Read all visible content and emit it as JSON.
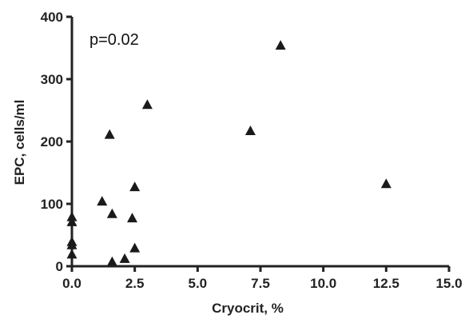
{
  "chart_data": {
    "type": "scatter",
    "title": "",
    "xlabel": "Cryocrit, %",
    "ylabel": "EPC, cells/ml",
    "xlim": [
      0,
      15
    ],
    "ylim": [
      0,
      400
    ],
    "xticks": [
      0,
      2.5,
      5,
      7.5,
      10,
      12.5,
      15
    ],
    "xtick_labels": [
      "0.0",
      "2.5",
      "5.0",
      "7.5",
      "10.0",
      "12.5",
      "15.0"
    ],
    "yticks": [
      0,
      100,
      200,
      300,
      400
    ],
    "ytick_labels": [
      "0",
      "100",
      "200",
      "300",
      "400"
    ],
    "grid": false,
    "marker": "triangle",
    "annotation": "p=0.02",
    "points": [
      {
        "x": 0.0,
        "y": 80
      },
      {
        "x": 0.0,
        "y": 72
      },
      {
        "x": 0.0,
        "y": 40
      },
      {
        "x": 0.0,
        "y": 35
      },
      {
        "x": 0.0,
        "y": 20
      },
      {
        "x": 1.2,
        "y": 105
      },
      {
        "x": 1.5,
        "y": 212
      },
      {
        "x": 1.6,
        "y": 85
      },
      {
        "x": 1.6,
        "y": 8
      },
      {
        "x": 2.1,
        "y": 13
      },
      {
        "x": 2.4,
        "y": 78
      },
      {
        "x": 2.5,
        "y": 128
      },
      {
        "x": 2.5,
        "y": 30
      },
      {
        "x": 3.0,
        "y": 260
      },
      {
        "x": 7.1,
        "y": 218
      },
      {
        "x": 8.3,
        "y": 355
      },
      {
        "x": 12.5,
        "y": 133
      }
    ]
  }
}
